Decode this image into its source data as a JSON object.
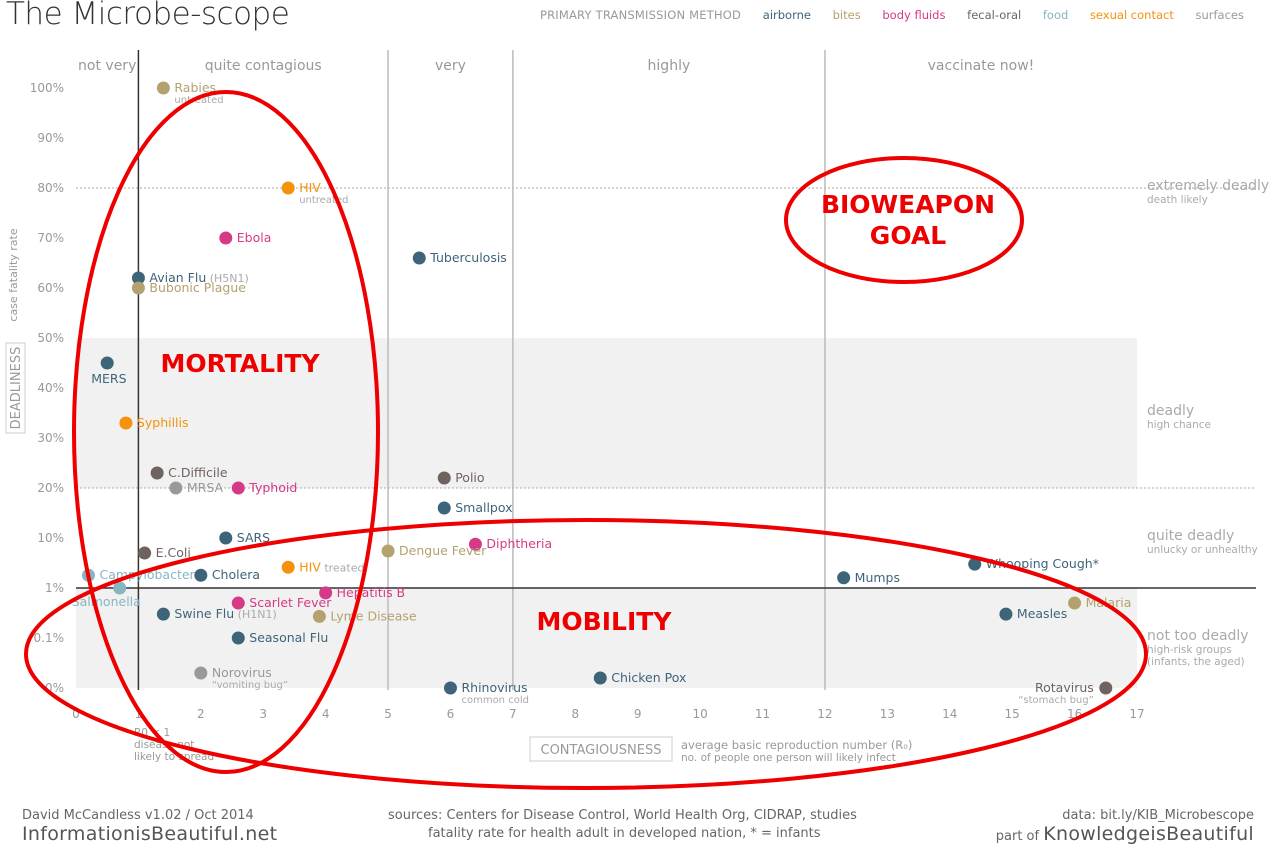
{
  "title": "The Microbe-scope",
  "legend": {
    "title": "PRIMARY TRANSMISSION METHOD",
    "items": [
      {
        "label": "airborne",
        "color": "#3d6479"
      },
      {
        "label": "bites",
        "color": "#b3a16e"
      },
      {
        "label": "body fluids",
        "color": "#d63a87"
      },
      {
        "label": "fecal-oral",
        "color": "#6f6360"
      },
      {
        "label": "food",
        "color": "#85b6c2"
      },
      {
        "label": "sexual contact",
        "color": "#f4920b"
      },
      {
        "label": "surfaces",
        "color": "#999999"
      }
    ]
  },
  "chart_data": {
    "type": "scatter",
    "xlabel": "CONTAGIOUSNESS",
    "xlabel_note": "average basic reproduction number (R₀)",
    "xlabel_note2": "no. of people one person will likely infect",
    "ylabel": "DEADLINESS",
    "ylabel_note": "case fatality rate",
    "xlim": [
      0,
      17
    ],
    "x_ticks": [
      "0",
      "1",
      "2",
      "3",
      "4",
      "5",
      "6",
      "7",
      "8",
      "9",
      "10",
      "11",
      "12",
      "13",
      "14",
      "15",
      "16",
      "17"
    ],
    "y_scale": "piecewise",
    "y_ticks": [
      "0%",
      "0.1%",
      "1%",
      "10%",
      "20%",
      "30%",
      "40%",
      "50%",
      "60%",
      "70%",
      "80%",
      "90%",
      "100%"
    ],
    "r0_note": [
      "R0 < 1",
      "disease not",
      "likely to spread"
    ],
    "contagion_bands": [
      {
        "label": "not very",
        "x_from": 0,
        "x_to": 1
      },
      {
        "label": "quite contagious",
        "x_from": 1,
        "x_to": 5
      },
      {
        "label": "very",
        "x_from": 5,
        "x_to": 7
      },
      {
        "label": "highly",
        "x_from": 7,
        "x_to": 12
      },
      {
        "label": "vaccinate now!",
        "x_from": 12,
        "x_to": 17
      }
    ],
    "deadliness_bands": [
      {
        "label": "extremely deadly",
        "sub": "death likely",
        "y": 80
      },
      {
        "label": "deadly",
        "sub": "high chance",
        "y": 35
      },
      {
        "label": "quite deadly",
        "sub": "unlucky or unhealthy",
        "y": 10
      },
      {
        "label": "not too deadly",
        "sub": "high-risk groups (infants, the aged)",
        "y": 0.1
      }
    ],
    "points": [
      {
        "name": "Rabies",
        "note": "untreated",
        "x": 1.4,
        "y": 100,
        "type": "bites"
      },
      {
        "name": "HIV",
        "note": "untreated",
        "x": 3.4,
        "y": 80,
        "type": "sexual contact"
      },
      {
        "name": "Ebola",
        "note": "",
        "x": 2.4,
        "y": 70,
        "type": "body fluids"
      },
      {
        "name": "Tuberculosis",
        "note": "",
        "x": 5.5,
        "y": 66,
        "type": "airborne"
      },
      {
        "name": "Avian Flu",
        "note": "(H5N1)",
        "x": 1.0,
        "y": 62,
        "type": "airborne"
      },
      {
        "name": "Bubonic Plague",
        "note": "",
        "x": 1.0,
        "y": 60,
        "type": "bites"
      },
      {
        "name": "MERS",
        "note": "",
        "x": 0.5,
        "y": 45,
        "type": "airborne"
      },
      {
        "name": "Syphillis",
        "note": "",
        "x": 0.8,
        "y": 33,
        "type": "sexual contact"
      },
      {
        "name": "C.Difficile",
        "note": "",
        "x": 1.3,
        "y": 23,
        "type": "fecal-oral"
      },
      {
        "name": "Polio",
        "note": "",
        "x": 5.9,
        "y": 22,
        "type": "fecal-oral"
      },
      {
        "name": "MRSA",
        "note": "",
        "x": 1.6,
        "y": 20,
        "type": "surfaces"
      },
      {
        "name": "Typhoid",
        "note": "",
        "x": 2.6,
        "y": 20,
        "type": "body fluids"
      },
      {
        "name": "Smallpox",
        "note": "",
        "x": 5.9,
        "y": 16,
        "type": "airborne"
      },
      {
        "name": "SARS",
        "note": "",
        "x": 2.4,
        "y": 10,
        "type": "airborne"
      },
      {
        "name": "Diphtheria",
        "note": "",
        "x": 6.4,
        "y": 7.5,
        "type": "body fluids"
      },
      {
        "name": "Dengue Fever",
        "note": "",
        "x": 5.0,
        "y": 5.5,
        "type": "bites"
      },
      {
        "name": "E.Coli",
        "note": "",
        "x": 1.1,
        "y": 5,
        "type": "fecal-oral"
      },
      {
        "name": "HIV",
        "note": "treated",
        "x": 3.4,
        "y": 2.6,
        "type": "sexual contact"
      },
      {
        "name": "Campylobacter",
        "note": "",
        "x": 0.2,
        "y": 1.8,
        "type": "food"
      },
      {
        "name": "Cholera",
        "note": "",
        "x": 2.0,
        "y": 1.8,
        "type": "airborne"
      },
      {
        "name": "Salmonella",
        "note": "",
        "x": 0.7,
        "y": 1.0,
        "type": "food"
      },
      {
        "name": "Mumps",
        "note": "",
        "x": 12.3,
        "y": 1.6,
        "type": "airborne"
      },
      {
        "name": "Whooping Cough*",
        "note": "",
        "x": 14.4,
        "y": 3.0,
        "type": "airborne"
      },
      {
        "name": "Hepatitis B",
        "note": "",
        "x": 4.0,
        "y": 0.8,
        "type": "body fluids"
      },
      {
        "name": "Scarlet Fever",
        "note": "",
        "x": 2.6,
        "y": 0.5,
        "type": "body fluids"
      },
      {
        "name": "Swine Flu",
        "note": "(H1N1)",
        "x": 1.4,
        "y": 0.3,
        "type": "airborne"
      },
      {
        "name": "Lyme Disease",
        "note": "",
        "x": 3.9,
        "y": 0.27,
        "type": "bites"
      },
      {
        "name": "Seasonal Flu",
        "note": "",
        "x": 2.6,
        "y": 0.1,
        "type": "airborne"
      },
      {
        "name": "Malaria",
        "note": "",
        "x": 16.0,
        "y": 0.5,
        "type": "bites"
      },
      {
        "name": "Measles",
        "note": "",
        "x": 14.9,
        "y": 0.3,
        "type": "airborne"
      },
      {
        "name": "Norovirus",
        "note": "“vomiting bug”",
        "x": 2.0,
        "y": 0.03,
        "type": "surfaces"
      },
      {
        "name": "Chicken Pox",
        "note": "",
        "x": 8.4,
        "y": 0.02,
        "type": "airborne"
      },
      {
        "name": "Rhinovirus",
        "note": "common cold",
        "x": 6.0,
        "y": 0.0,
        "type": "airborne"
      },
      {
        "name": "Rotavirus",
        "note": "“stomach bug”",
        "x": 16.5,
        "y": 0.0,
        "type": "fecal-oral"
      }
    ],
    "annotations": [
      {
        "text": "BIOWEAPON",
        "color": "#ee0000"
      },
      {
        "text": "GOAL",
        "color": "#ee0000"
      },
      {
        "text": "MORTALITY",
        "color": "#ee0000"
      },
      {
        "text": "MOBILITY",
        "color": "#ee0000"
      }
    ]
  },
  "footer": {
    "author": "David McCandless v1.02 / Oct 2014",
    "site": "InformationisBeautiful.net",
    "sources": "sources: Centers for Disease Control, World Health Org, CIDRAP, studies",
    "fatality_note": "fatality rate for health adult in developed nation, * = infants",
    "data_link": "data: bit.ly/KIB_Microbescope",
    "part_of": "part of",
    "kib": "KnowledgeisBeautiful"
  }
}
